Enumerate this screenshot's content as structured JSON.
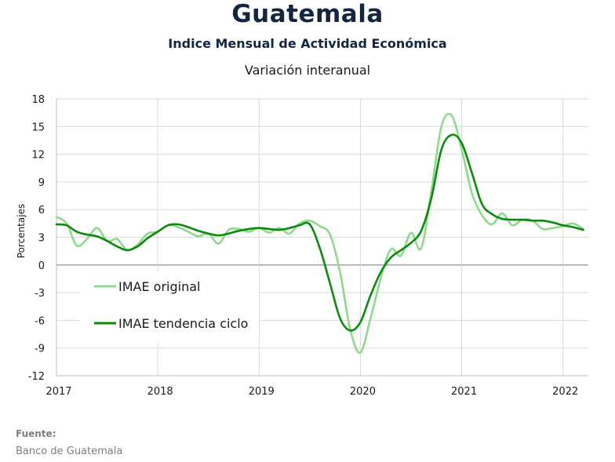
{
  "header": {
    "title": "Guatemala",
    "subtitle": "Indice Mensual de  Actividad Económica",
    "subtitle2": "Variación interanual"
  },
  "source": {
    "label": "Fuente:",
    "text": "Banco de Guatemala"
  },
  "chart_data": {
    "type": "line",
    "title": "",
    "xlabel": "",
    "ylabel": "Porcentajes",
    "ylim": [
      -12,
      18
    ],
    "yticks": [
      18,
      15,
      12,
      9,
      6,
      3,
      0,
      -3,
      -6,
      -9,
      -12
    ],
    "xlim": [
      2017.0,
      2022.25
    ],
    "xticks": [
      2017,
      2018,
      2019,
      2020,
      2021,
      2022
    ],
    "grid": true,
    "legend": "lower-left",
    "series": [
      {
        "name": "IMAE original",
        "color": "#8fd98f",
        "x": [
          2017.0,
          2017.1,
          2017.2,
          2017.3,
          2017.4,
          2017.5,
          2017.6,
          2017.7,
          2017.8,
          2017.9,
          2018.0,
          2018.1,
          2018.2,
          2018.3,
          2018.4,
          2018.5,
          2018.6,
          2018.7,
          2018.8,
          2018.9,
          2019.0,
          2019.1,
          2019.2,
          2019.3,
          2019.4,
          2019.5,
          2019.6,
          2019.7,
          2019.8,
          2019.9,
          2020.0,
          2020.1,
          2020.2,
          2020.3,
          2020.4,
          2020.5,
          2020.6,
          2020.7,
          2020.8,
          2020.9,
          2021.0,
          2021.1,
          2021.2,
          2021.3,
          2021.4,
          2021.5,
          2021.6,
          2021.7,
          2021.8,
          2021.9,
          2022.0,
          2022.1,
          2022.2
        ],
        "values": [
          5.2,
          4.5,
          2.1,
          2.8,
          4.0,
          2.6,
          2.8,
          1.6,
          2.2,
          3.4,
          3.6,
          4.3,
          4.1,
          3.6,
          3.1,
          3.4,
          2.3,
          3.8,
          3.9,
          3.6,
          4.0,
          3.5,
          4.0,
          3.4,
          4.5,
          4.8,
          4.2,
          3.3,
          -0.8,
          -7.0,
          -9.5,
          -5.8,
          -1.5,
          1.7,
          1.0,
          3.5,
          1.8,
          8.0,
          15.0,
          16.2,
          12.5,
          7.8,
          5.4,
          4.4,
          5.6,
          4.3,
          4.9,
          4.8,
          3.9,
          4.0,
          4.2,
          4.5,
          3.9
        ]
      },
      {
        "name": "IMAE tendencia ciclo",
        "color": "#0b8a0b",
        "x": [
          2017.0,
          2017.1,
          2017.2,
          2017.3,
          2017.4,
          2017.5,
          2017.6,
          2017.7,
          2017.8,
          2017.9,
          2018.0,
          2018.1,
          2018.2,
          2018.3,
          2018.4,
          2018.5,
          2018.6,
          2018.7,
          2018.8,
          2018.9,
          2019.0,
          2019.1,
          2019.2,
          2019.3,
          2019.4,
          2019.5,
          2019.6,
          2019.7,
          2019.8,
          2019.9,
          2020.0,
          2020.1,
          2020.2,
          2020.3,
          2020.4,
          2020.5,
          2020.6,
          2020.7,
          2020.8,
          2020.9,
          2021.0,
          2021.1,
          2021.2,
          2021.3,
          2021.4,
          2021.5,
          2021.6,
          2021.7,
          2021.8,
          2021.9,
          2022.0,
          2022.1,
          2022.2
        ],
        "values": [
          4.4,
          4.3,
          3.6,
          3.3,
          3.1,
          2.6,
          2.0,
          1.6,
          2.0,
          2.9,
          3.6,
          4.3,
          4.4,
          4.1,
          3.7,
          3.4,
          3.2,
          3.4,
          3.7,
          3.9,
          4.0,
          3.9,
          3.8,
          4.0,
          4.3,
          4.4,
          1.8,
          -2.0,
          -5.8,
          -7.1,
          -6.2,
          -3.3,
          -0.8,
          0.8,
          1.6,
          2.4,
          3.7,
          7.2,
          12.5,
          14.1,
          13.2,
          10.0,
          6.6,
          5.5,
          5.0,
          4.9,
          4.9,
          4.8,
          4.8,
          4.6,
          4.3,
          4.1,
          3.8
        ]
      }
    ]
  }
}
